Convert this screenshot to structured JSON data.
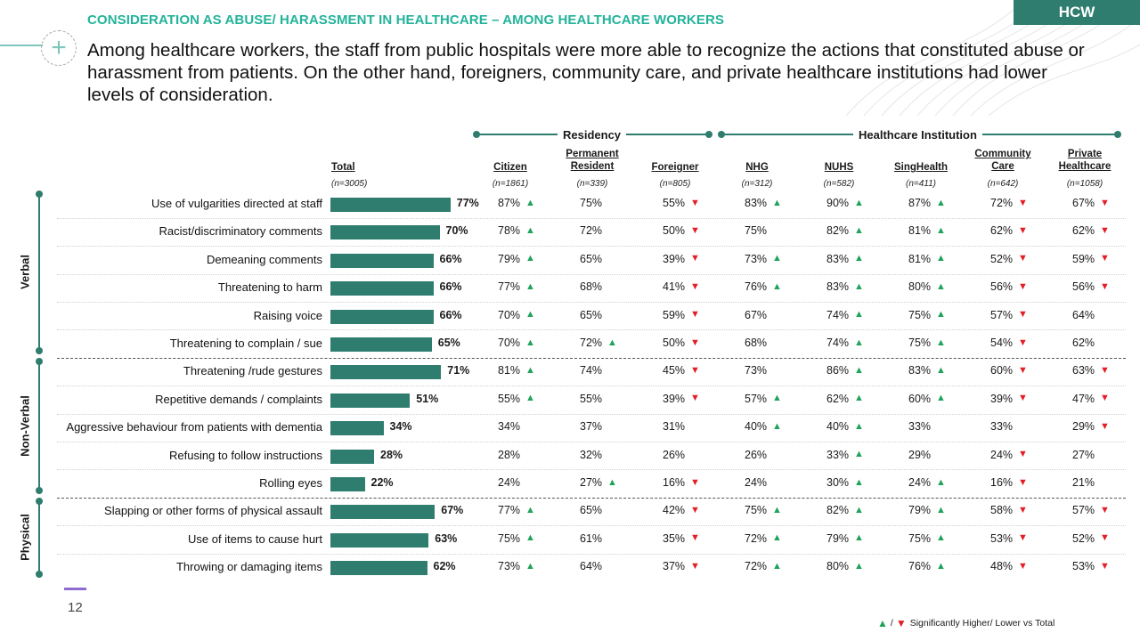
{
  "header": {
    "kicker": "CONSIDERATION AS ABUSE/ HARASSMENT IN HEALTHCARE – AMONG HEALTHCARE WORKERS",
    "headline": "Among healthcare workers, the staff from public hospitals were more able to recognize the actions that constituted abuse or harassment from patients. On the other hand, foreigners, community care, and private healthcare institutions had lower levels of consideration.",
    "badge": "HCW",
    "plus_glyph": "+"
  },
  "groups": [
    {
      "label": "Residency"
    },
    {
      "label": "Healthcare Institution"
    }
  ],
  "side_groups": [
    "Verbal",
    "Non-Verbal",
    "Physical"
  ],
  "chart_data": {
    "type": "table",
    "total": {
      "label": "Total",
      "n": "(n=3005)"
    },
    "columns": [
      {
        "label": "Citizen",
        "n": "(n=1861)",
        "group": "Residency"
      },
      {
        "label": "Permanent\nResident",
        "n": "(n=339)",
        "group": "Residency"
      },
      {
        "label": "Foreigner",
        "n": "(n=805)",
        "group": "Residency"
      },
      {
        "label": "NHG",
        "n": "(n=312)",
        "group": "Healthcare Institution"
      },
      {
        "label": "NUHS",
        "n": "(n=582)",
        "group": "Healthcare Institution"
      },
      {
        "label": "SingHealth",
        "n": "(n=411)",
        "group": "Healthcare Institution"
      },
      {
        "label": "Community\nCare",
        "n": "(n=642)",
        "group": "Healthcare Institution"
      },
      {
        "label": "Private\nHealthcare",
        "n": "(n=1058)",
        "group": "Healthcare Institution"
      }
    ],
    "rows": [
      {
        "label": "Use of vulgarities directed at staff",
        "group": "Verbal",
        "total": 77,
        "values": [
          87,
          75,
          55,
          83,
          90,
          87,
          72,
          67
        ],
        "sig": [
          "up",
          "",
          "down",
          "up",
          "up",
          "up",
          "down",
          "down"
        ]
      },
      {
        "label": "Racist/discriminatory comments",
        "group": "Verbal",
        "total": 70,
        "values": [
          78,
          72,
          50,
          75,
          82,
          81,
          62,
          62
        ],
        "sig": [
          "up",
          "",
          "down",
          "",
          "up",
          "up",
          "down",
          "down"
        ]
      },
      {
        "label": "Demeaning comments",
        "group": "Verbal",
        "total": 66,
        "values": [
          79,
          65,
          39,
          73,
          83,
          81,
          52,
          59
        ],
        "sig": [
          "up",
          "",
          "down",
          "up",
          "up",
          "up",
          "down",
          "down"
        ]
      },
      {
        "label": "Threatening to harm",
        "group": "Verbal",
        "total": 66,
        "values": [
          77,
          68,
          41,
          76,
          83,
          80,
          56,
          56
        ],
        "sig": [
          "up",
          "",
          "down",
          "up",
          "up",
          "up",
          "down",
          "down"
        ]
      },
      {
        "label": "Raising voice",
        "group": "Verbal",
        "total": 66,
        "values": [
          70,
          65,
          59,
          67,
          74,
          75,
          57,
          64
        ],
        "sig": [
          "up",
          "",
          "down",
          "",
          "up",
          "up",
          "down",
          ""
        ]
      },
      {
        "label": "Threatening to complain / sue",
        "group": "Verbal",
        "total": 65,
        "values": [
          70,
          72,
          50,
          68,
          74,
          75,
          54,
          62
        ],
        "sig": [
          "up",
          "up",
          "down",
          "",
          "up",
          "up",
          "down",
          ""
        ]
      },
      {
        "label": "Threatening /rude gestures",
        "group": "Non-Verbal",
        "total": 71,
        "values": [
          81,
          74,
          45,
          73,
          86,
          83,
          60,
          63
        ],
        "sig": [
          "up",
          "",
          "down",
          "",
          "up",
          "up",
          "down",
          "down"
        ]
      },
      {
        "label": "Repetitive demands / complaints",
        "group": "Non-Verbal",
        "total": 51,
        "values": [
          55,
          55,
          39,
          57,
          62,
          60,
          39,
          47
        ],
        "sig": [
          "up",
          "",
          "down",
          "up",
          "up",
          "up",
          "down",
          "down"
        ]
      },
      {
        "label": "Aggressive behaviour from patients with dementia",
        "group": "Non-Verbal",
        "total": 34,
        "values": [
          34,
          37,
          31,
          40,
          40,
          33,
          33,
          29
        ],
        "sig": [
          "",
          "",
          "",
          "up",
          "up",
          "",
          "",
          "down"
        ]
      },
      {
        "label": "Refusing to follow instructions",
        "group": "Non-Verbal",
        "total": 28,
        "values": [
          28,
          32,
          26,
          26,
          33,
          29,
          24,
          27
        ],
        "sig": [
          "",
          "",
          "",
          "",
          "up",
          "",
          "down",
          ""
        ]
      },
      {
        "label": "Rolling eyes",
        "group": "Non-Verbal",
        "total": 22,
        "values": [
          24,
          27,
          16,
          24,
          30,
          24,
          16,
          21
        ],
        "sig": [
          "",
          "up",
          "down",
          "",
          "up",
          "up",
          "down",
          ""
        ]
      },
      {
        "label": "Slapping or other forms of physical assault",
        "group": "Physical",
        "total": 67,
        "values": [
          77,
          65,
          42,
          75,
          82,
          79,
          58,
          57
        ],
        "sig": [
          "up",
          "",
          "down",
          "up",
          "up",
          "up",
          "down",
          "down"
        ]
      },
      {
        "label": "Use of items to cause hurt",
        "group": "Physical",
        "total": 63,
        "values": [
          75,
          61,
          35,
          72,
          79,
          75,
          53,
          52
        ],
        "sig": [
          "up",
          "",
          "down",
          "up",
          "up",
          "up",
          "down",
          "down"
        ]
      },
      {
        "label": "Throwing or damaging items",
        "group": "Physical",
        "total": 62,
        "values": [
          73,
          64,
          37,
          72,
          80,
          76,
          48,
          53
        ],
        "sig": [
          "up",
          "",
          "down",
          "up",
          "up",
          "up",
          "down",
          "down"
        ]
      }
    ]
  },
  "colors": {
    "bar": "#2e7d6f",
    "accent": "#23b39a",
    "up": "#1fa35a",
    "down": "#e41e26",
    "badge": "#2e7d6f"
  },
  "legend": {
    "slash": "/",
    "text": "Significantly Higher/ Lower vs Total"
  },
  "footer": {
    "page_number": "12"
  }
}
